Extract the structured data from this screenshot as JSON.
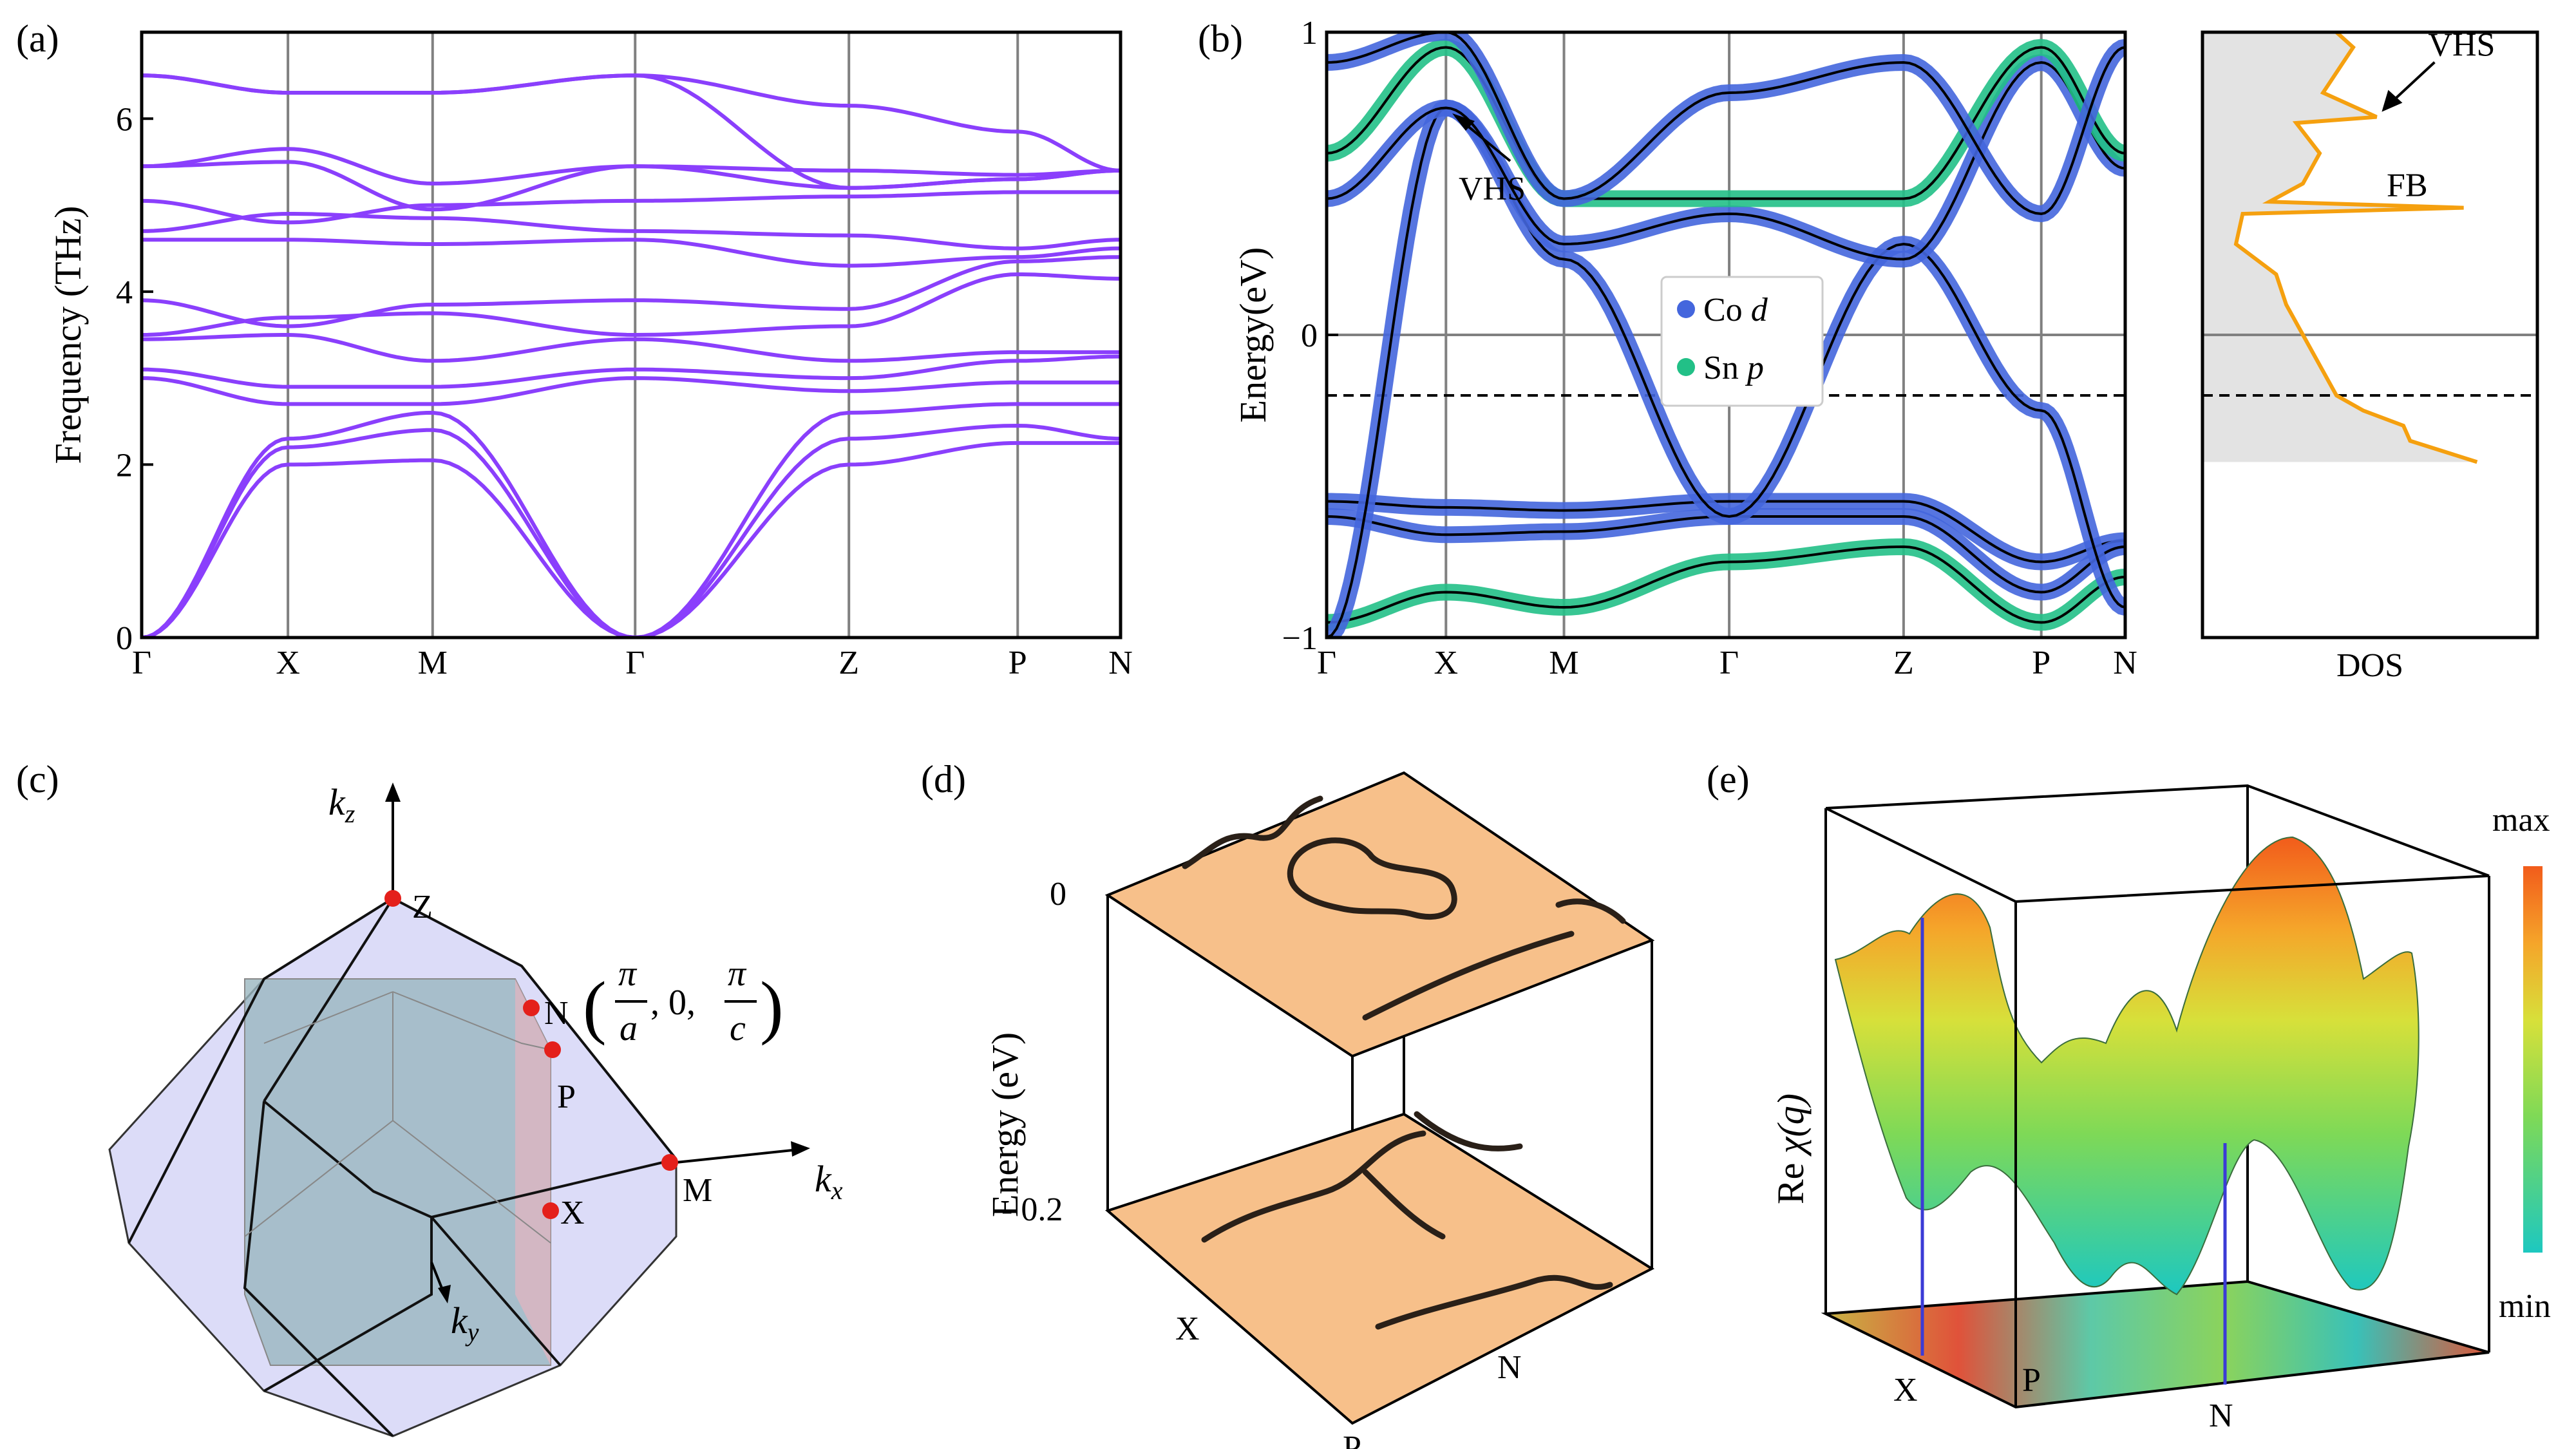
{
  "colors": {
    "phonon": "#8a3ffc",
    "co_d": "#4466dd",
    "sn_p": "#22c087",
    "dos": "#f5a00f",
    "dos_bg": "#e3e3e3",
    "fermi": "#808080",
    "surface": "#f7c08a",
    "bz": "#c9c9f2",
    "point": "#e4201b"
  },
  "labels": {
    "a": "(a)",
    "b": "(b)",
    "c": "(c)",
    "d": "(d)",
    "e": "(e)",
    "dos_xlabel": "DOS",
    "vhs_b": "VHS",
    "vhs_dos": "VHS",
    "fb": "FB",
    "legend_co": "Co",
    "legend_co_orb": "d",
    "legend_sn": "Sn",
    "legend_sn_orb": "p",
    "kz": "k",
    "kz_sub": "z",
    "kx": "k",
    "kx_sub": "x",
    "ky": "k",
    "ky_sub": "y",
    "bz_Z": "Z",
    "bz_N": "N",
    "bz_P": "P",
    "bz_X": "X",
    "bz_M": "M",
    "n_coord_open": "(",
    "n_coord_pi1": "π",
    "n_coord_a": "a",
    "n_coord_mid": ", 0, ",
    "n_coord_pi2": "π",
    "n_coord_c": "c",
    "n_coord_close": ")",
    "d_ylabel": "Energy (eV)",
    "d_tick_0": "0",
    "d_tick_02": "- 0.2",
    "d_X": "X",
    "d_N": "N",
    "d_P": "P",
    "e_ylabel_re": "Re ",
    "e_ylabel_chi": "χ(q)",
    "e_max": "max",
    "e_min": "min",
    "e_X": "X",
    "e_P": "P",
    "e_N": "N"
  },
  "chart_data": [
    {
      "id": "a",
      "type": "line",
      "title": "",
      "ylabel": "Frequency (THz)",
      "xlabel": "",
      "ylim": [
        0,
        7
      ],
      "yticks": [
        "0",
        "2",
        "4",
        "6"
      ],
      "kpath": [
        "Γ",
        "X",
        "M",
        "Γ",
        "Z",
        "P",
        "N"
      ],
      "kpos": [
        0,
        0.91,
        1.81,
        3.07,
        4.4,
        5.45,
        6.09
      ],
      "series": [
        {
          "name": "branch1",
          "values": [
            0,
            2.0,
            2.05,
            0,
            2.0,
            2.25,
            2.25
          ]
        },
        {
          "name": "branch2",
          "values": [
            0,
            2.2,
            2.4,
            0,
            2.3,
            2.45,
            2.3
          ]
        },
        {
          "name": "branch3",
          "values": [
            0,
            2.3,
            2.6,
            0,
            2.6,
            2.7,
            2.7
          ]
        },
        {
          "name": "branch4",
          "values": [
            3.0,
            2.7,
            2.7,
            3.0,
            2.85,
            2.95,
            2.95
          ]
        },
        {
          "name": "branch5",
          "values": [
            3.1,
            2.9,
            2.9,
            3.1,
            3.0,
            3.2,
            3.25
          ]
        },
        {
          "name": "branch6",
          "values": [
            3.45,
            3.5,
            3.2,
            3.45,
            3.2,
            3.3,
            3.3
          ]
        },
        {
          "name": "branch7",
          "values": [
            3.5,
            3.7,
            3.75,
            3.5,
            3.6,
            4.2,
            4.15
          ]
        },
        {
          "name": "branch8",
          "values": [
            3.9,
            3.6,
            3.85,
            3.9,
            3.8,
            4.35,
            4.4
          ]
        },
        {
          "name": "branch9",
          "values": [
            4.6,
            4.6,
            4.55,
            4.6,
            4.3,
            4.4,
            4.5
          ]
        },
        {
          "name": "branch10",
          "values": [
            4.7,
            4.9,
            4.85,
            4.7,
            4.65,
            4.5,
            4.6
          ]
        },
        {
          "name": "branch11",
          "values": [
            5.05,
            4.8,
            5.0,
            5.05,
            5.1,
            5.15,
            5.15
          ]
        },
        {
          "name": "branch12",
          "values": [
            5.45,
            5.5,
            4.95,
            5.45,
            5.2,
            5.3,
            5.4
          ]
        },
        {
          "name": "branch13",
          "values": [
            5.45,
            5.65,
            5.25,
            5.45,
            5.4,
            5.35,
            5.4
          ]
        },
        {
          "name": "branch14",
          "values": [
            6.5,
            6.3,
            6.3,
            6.5,
            5.2,
            5.3,
            5.4
          ]
        },
        {
          "name": "branch15",
          "values": [
            6.5,
            6.3,
            6.3,
            6.5,
            6.15,
            5.85,
            5.4
          ]
        }
      ]
    },
    {
      "id": "b",
      "type": "line",
      "title": "",
      "ylabel": "Energy(eV)",
      "xlabel": "",
      "ylim": [
        -1,
        1
      ],
      "yticks": [
        "−1",
        "0",
        "1"
      ],
      "kpath": [
        "Γ",
        "X",
        "M",
        "Γ",
        "Z",
        "P",
        "N"
      ],
      "kpos": [
        0,
        0.91,
        1.81,
        3.07,
        4.4,
        5.45,
        6.09
      ],
      "fermi_level": 0,
      "dashed_level": -0.2,
      "legend": [
        "Co d",
        "Sn p"
      ],
      "series": [
        {
          "name": "band1",
          "values": [
            -0.55,
            -0.57,
            -0.58,
            -0.55,
            -0.55,
            -0.75,
            -0.68
          ]
        },
        {
          "name": "band2",
          "values": [
            -0.6,
            -0.66,
            -0.65,
            -0.6,
            -0.6,
            -0.85,
            -0.7
          ]
        },
        {
          "name": "band3",
          "values": [
            -0.95,
            -0.85,
            -0.9,
            -0.75,
            -0.7,
            -0.95,
            -0.8
          ]
        },
        {
          "name": "band4",
          "values": [
            -1.0,
            0.75,
            0.25,
            -0.6,
            0.3,
            -0.25,
            -0.9
          ]
        },
        {
          "name": "band5",
          "values": [
            0.45,
            0.75,
            0.3,
            0.4,
            0.25,
            0.9,
            0.55
          ]
        },
        {
          "name": "band6",
          "values": [
            0.6,
            0.95,
            0.45,
            0.45,
            0.45,
            0.95,
            0.6
          ]
        },
        {
          "name": "band7",
          "values": [
            0.9,
            1.0,
            0.45,
            0.8,
            0.9,
            0.4,
            0.95
          ]
        }
      ]
    },
    {
      "id": "b_dos",
      "type": "line",
      "title": "",
      "xlabel": "DOS",
      "ylim": [
        -1,
        1
      ],
      "annotations": [
        "VHS",
        "FB"
      ],
      "series": [
        {
          "name": "DOS",
          "energy": [
            -0.42,
            -0.35,
            -0.3,
            -0.25,
            -0.2,
            -0.1,
            0.0,
            0.1,
            0.2,
            0.3,
            0.4,
            0.42,
            0.44,
            0.5,
            0.6,
            0.7,
            0.72,
            0.8,
            0.9,
            0.95,
            1.0
          ],
          "values": [
            0.82,
            0.62,
            0.6,
            0.48,
            0.4,
            0.35,
            0.3,
            0.25,
            0.22,
            0.1,
            0.12,
            0.78,
            0.2,
            0.3,
            0.35,
            0.28,
            0.52,
            0.36,
            0.42,
            0.45,
            0.4
          ]
        }
      ]
    }
  ]
}
